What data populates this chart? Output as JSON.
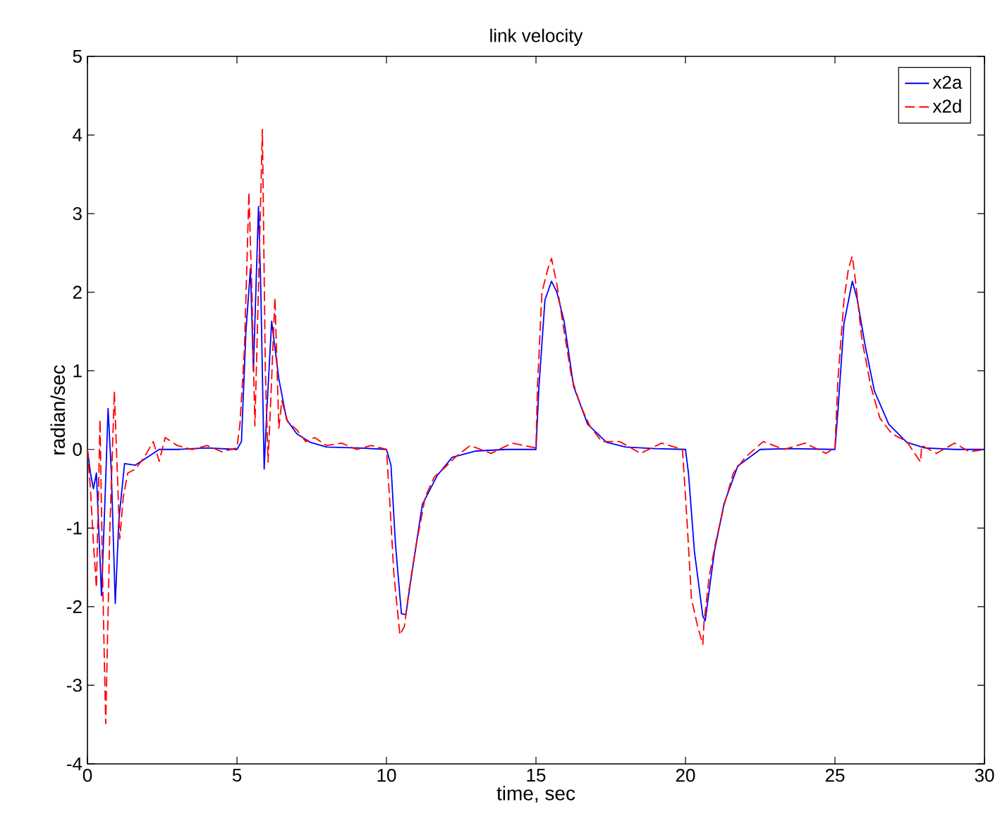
{
  "chart_data": {
    "type": "line",
    "title": "link velocity",
    "xlabel": "time, sec",
    "ylabel": "radian/sec",
    "xlim": [
      0,
      30
    ],
    "ylim": [
      -4,
      5
    ],
    "xticks": [
      0,
      5,
      10,
      15,
      20,
      25,
      30
    ],
    "yticks": [
      -4,
      -3,
      -2,
      -1,
      0,
      1,
      2,
      3,
      4,
      5
    ],
    "legend": "top right",
    "series": [
      {
        "name": "x2a",
        "color": "#0000ff",
        "line_style": "solid",
        "x": [
          0,
          0.1,
          0.2,
          0.3,
          0.47,
          0.6,
          0.69,
          0.8,
          0.93,
          1.05,
          1.24,
          1.6,
          2.0,
          2.4,
          3,
          4,
          5.0,
          5.15,
          5.3,
          5.45,
          5.55,
          5.72,
          5.8,
          5.91,
          6.0,
          6.16,
          6.3,
          6.4,
          6.66,
          7.0,
          7.45,
          8,
          9,
          10.0,
          10.15,
          10.3,
          10.5,
          10.65,
          10.8,
          11.2,
          11.7,
          12.2,
          13,
          14,
          15.0,
          15.1,
          15.3,
          15.52,
          15.7,
          15.94,
          16.26,
          16.73,
          17.36,
          18,
          19,
          20.0,
          20.1,
          20.3,
          20.58,
          20.66,
          20.97,
          21.29,
          21.75,
          22.5,
          23.5,
          25.0,
          25.1,
          25.3,
          25.58,
          25.75,
          26.0,
          26.32,
          26.8,
          27.4,
          28,
          29,
          30
        ],
        "values": [
          0,
          -0.3,
          -0.5,
          -0.3,
          -1.86,
          -0.5,
          0.52,
          -0.3,
          -1.96,
          -0.9,
          -0.18,
          -0.2,
          -0.1,
          0,
          0,
          0.02,
          0,
          0.1,
          1.5,
          2.3,
          1.0,
          3.09,
          2.0,
          -0.25,
          0.5,
          1.63,
          1.2,
          0.9,
          0.38,
          0.2,
          0.09,
          0.03,
          0.02,
          0,
          -0.2,
          -1.2,
          -2.09,
          -2.1,
          -1.7,
          -0.7,
          -0.33,
          -0.1,
          -0.02,
          0,
          0,
          0.8,
          1.9,
          2.14,
          2.0,
          1.63,
          0.8,
          0.32,
          0.09,
          0.03,
          0.01,
          0,
          -0.3,
          -1.3,
          -2.12,
          -2.18,
          -1.29,
          -0.69,
          -0.21,
          0,
          0.01,
          0,
          0.5,
          1.6,
          2.14,
          1.9,
          1.34,
          0.74,
          0.32,
          0.09,
          0.02,
          0,
          0
        ]
      },
      {
        "name": "x2d",
        "color": "#ff0000",
        "line_style": "dashed",
        "x": [
          0,
          0.1,
          0.2,
          0.3,
          0.42,
          0.5,
          0.61,
          0.75,
          0.9,
          1.08,
          1.2,
          1.35,
          1.6,
          1.9,
          2.2,
          2.4,
          2.6,
          3.0,
          3.5,
          4.0,
          4.5,
          5.0,
          5.1,
          5.25,
          5.4,
          5.5,
          5.6,
          5.75,
          5.85,
          5.95,
          6.04,
          6.15,
          6.27,
          6.4,
          6.5,
          6.7,
          7.0,
          7.3,
          7.6,
          8.0,
          8.5,
          9.0,
          9.5,
          10.0,
          10.1,
          10.25,
          10.45,
          10.6,
          10.75,
          11.0,
          11.3,
          11.6,
          11.9,
          12.3,
          12.8,
          13.5,
          14.2,
          15.0,
          15.05,
          15.2,
          15.4,
          15.52,
          15.7,
          15.9,
          16.2,
          16.5,
          16.8,
          17.2,
          17.8,
          18.5,
          19.2,
          19.9,
          20.05,
          20.2,
          20.4,
          20.58,
          20.62,
          20.8,
          21.0,
          21.3,
          21.6,
          22.0,
          22.6,
          23.3,
          24.0,
          24.7,
          25.0,
          25.1,
          25.3,
          25.45,
          25.58,
          25.7,
          25.9,
          26.2,
          26.5,
          26.9,
          27.4,
          27.86,
          27.9,
          28.4,
          29,
          29.5,
          30
        ],
        "values": [
          0,
          -0.5,
          -1.2,
          -1.76,
          0.38,
          -1.5,
          -3.49,
          -1.0,
          0.74,
          -1.14,
          -0.6,
          -0.3,
          -0.25,
          -0.1,
          0.1,
          -0.15,
          0.15,
          0.05,
          0.0,
          0.05,
          -0.03,
          0.02,
          0.32,
          1.27,
          3.27,
          2.0,
          0.3,
          2.5,
          4.07,
          1.0,
          -0.16,
          0.8,
          1.93,
          0.27,
          0.62,
          0.35,
          0.25,
          0.1,
          0.15,
          0.05,
          0.08,
          0.0,
          0.05,
          0.0,
          -0.6,
          -1.6,
          -2.36,
          -2.25,
          -1.8,
          -1.2,
          -0.6,
          -0.35,
          -0.25,
          -0.1,
          0.05,
          -0.05,
          0.08,
          0.02,
          0.8,
          2.0,
          2.3,
          2.43,
          2.1,
          1.6,
          0.9,
          0.55,
          0.3,
          0.1,
          0.1,
          -0.05,
          0.08,
          0.0,
          -0.9,
          -1.9,
          -2.24,
          -2.48,
          -2.2,
          -1.6,
          -1.2,
          -0.7,
          -0.3,
          -0.1,
          0.1,
          0.0,
          0.08,
          -0.05,
          0.02,
          0.9,
          1.9,
          2.3,
          2.46,
          2.1,
          1.4,
          0.8,
          0.4,
          0.2,
          0.1,
          -0.16,
          0.05,
          -0.05,
          0.08,
          -0.03,
          0.0
        ]
      }
    ]
  }
}
